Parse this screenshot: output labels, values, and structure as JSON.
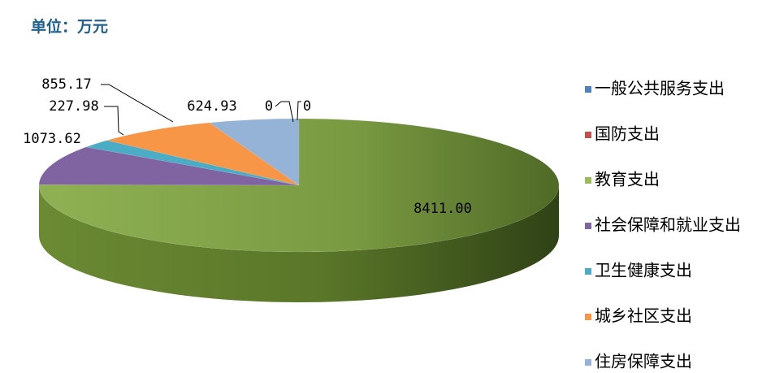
{
  "unit_label": "单位：万元",
  "chart_data": {
    "type": "pie",
    "style": "3d-pie",
    "categories": [
      "一般公共服务支出",
      "国防支出",
      "教育支出",
      "社会保障和就业支出",
      "卫生健康支出",
      "城乡社区支出",
      "住房保障支出"
    ],
    "values": [
      0,
      0,
      8411.0,
      1073.62,
      227.98,
      855.17,
      624.93
    ],
    "data_labels": [
      "0",
      "0",
      "8411.00",
      "1073.62",
      "227.98",
      "855.17",
      "624.93"
    ],
    "colors": [
      "#4f81bd",
      "#c0504d",
      "#9bbb59",
      "#8064a2",
      "#4bacc6",
      "#f79646",
      "#95b3d7"
    ],
    "legend_position": "right"
  }
}
